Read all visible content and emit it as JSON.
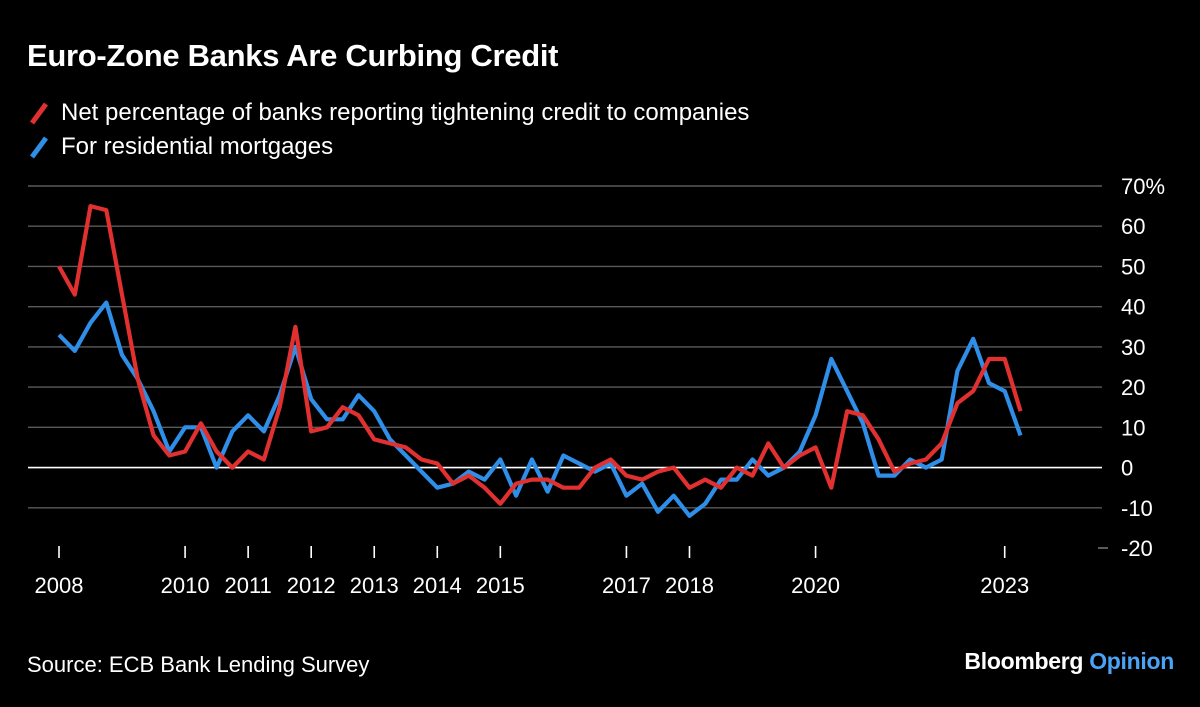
{
  "header": {
    "title": "Euro-Zone Banks Are Curbing Credit"
  },
  "footer": {
    "source": "Source: ECB Bank Lending Survey",
    "brand_primary": "Bloomberg",
    "brand_secondary": "Opinion"
  },
  "colors": {
    "background": "#000000",
    "companies": "#e03030",
    "mortgages": "#2e8ee8",
    "grid": "#5a5a5a",
    "zero_line": "#ffffff"
  },
  "chart_data": {
    "type": "line",
    "title": "Euro-Zone Banks Are Curbing Credit",
    "xlabel": "",
    "ylabel": "",
    "ylim": [
      -20,
      70
    ],
    "xlim": [
      2008.0,
      2023.75
    ],
    "yticks": [
      70,
      60,
      50,
      40,
      30,
      20,
      10,
      0,
      -10,
      -20
    ],
    "ytick_labels": [
      "70%",
      "60",
      "50",
      "40",
      "30",
      "20",
      "10",
      "0",
      "-10",
      "-20"
    ],
    "xticks": [
      2008,
      2010,
      2011,
      2012,
      2013,
      2014,
      2015,
      2017,
      2018,
      2020,
      2023
    ],
    "xtick_labels": [
      "2008",
      "2010",
      "2011",
      "2012",
      "2013",
      "2014",
      "2015",
      "2017",
      "2018",
      "2020",
      "2023"
    ],
    "legend_position": "top-left",
    "grid": true,
    "x": [
      2008.0,
      2008.25,
      2008.5,
      2008.75,
      2009.0,
      2009.25,
      2009.5,
      2009.75,
      2010.0,
      2010.25,
      2010.5,
      2010.75,
      2011.0,
      2011.25,
      2011.5,
      2011.75,
      2012.0,
      2012.25,
      2012.5,
      2012.75,
      2013.0,
      2013.25,
      2013.5,
      2013.75,
      2014.0,
      2014.25,
      2014.5,
      2014.75,
      2015.0,
      2015.25,
      2015.5,
      2015.75,
      2016.0,
      2016.25,
      2016.5,
      2016.75,
      2017.0,
      2017.25,
      2017.5,
      2017.75,
      2018.0,
      2018.25,
      2018.5,
      2018.75,
      2019.0,
      2019.25,
      2019.5,
      2019.75,
      2020.0,
      2020.25,
      2020.5,
      2020.75,
      2021.0,
      2021.25,
      2021.5,
      2021.75,
      2022.0,
      2022.25,
      2022.5,
      2022.75,
      2023.0,
      2023.25
    ],
    "series": [
      {
        "name": "Net percentage of banks reporting tightening credit to companies",
        "color": "#e03030",
        "values": [
          50,
          43,
          65,
          64,
          43,
          22,
          8,
          3,
          4,
          11,
          4,
          0,
          4,
          2,
          15,
          35,
          9,
          10,
          15,
          13,
          7,
          6,
          5,
          2,
          1,
          -4,
          -2,
          -5,
          -9,
          -4,
          -3,
          -3,
          -5,
          -5,
          0,
          2,
          -2,
          -3,
          -1,
          0,
          -5,
          -3,
          -5,
          0,
          -2,
          6,
          0,
          3,
          5,
          -5,
          14,
          13,
          7,
          -1,
          1,
          2,
          6,
          16,
          19,
          27,
          27,
          14
        ]
      },
      {
        "name": "For residential mortgages",
        "color": "#2e8ee8",
        "values": [
          33,
          29,
          36,
          41,
          28,
          22,
          14,
          4,
          10,
          10,
          0,
          9,
          13,
          9,
          18,
          30,
          17,
          12,
          12,
          18,
          14,
          7,
          3,
          -1,
          -5,
          -4,
          -1,
          -3,
          2,
          -7,
          2,
          -6,
          3,
          1,
          -1,
          1,
          -7,
          -4,
          -11,
          -7,
          -12,
          -9,
          -3,
          -3,
          2,
          -2,
          0,
          4,
          13,
          27,
          19,
          11,
          -2,
          -2,
          2,
          0,
          2,
          24,
          32,
          21,
          19,
          8
        ]
      }
    ]
  }
}
